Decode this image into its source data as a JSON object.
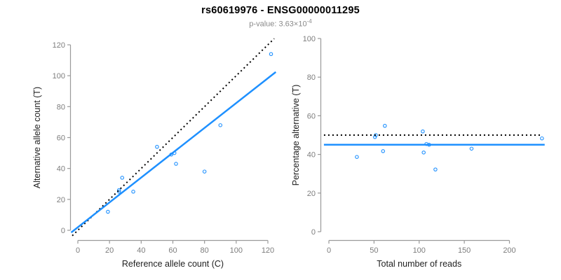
{
  "header": {
    "title": "rs60619976 - ENSG00000011295",
    "p_value_prefix": "p-value: 3.63×10",
    "p_value_exponent": "-4"
  },
  "colors": {
    "points": "#1E90FF",
    "fit_line": "#1E90FF",
    "reference_line": "#000000",
    "axis_line": "#9a9a9a",
    "tick_label": "#7d7d7d",
    "axis_title": "#1f1f1f",
    "subtitle": "#8a8a8a"
  },
  "chart_data": [
    {
      "type": "scatter",
      "title": "",
      "xlabel": "Reference allele count (C)",
      "ylabel": "Alternative allele count (T)",
      "xticks": [
        0,
        20,
        40,
        60,
        80,
        100,
        120
      ],
      "yticks": [
        0,
        20,
        40,
        60,
        80,
        100,
        120
      ],
      "xlim": [
        -4,
        125
      ],
      "ylim": [
        -6.5,
        124.5
      ],
      "grid": false,
      "legend": "none",
      "marker": "open-circle",
      "points": [
        [
          19,
          12
        ],
        [
          26,
          25
        ],
        [
          26,
          26
        ],
        [
          28,
          34
        ],
        [
          35,
          25
        ],
        [
          50,
          54
        ],
        [
          59,
          49
        ],
        [
          61,
          50
        ],
        [
          62,
          43
        ],
        [
          80,
          38
        ],
        [
          90,
          68
        ],
        [
          122,
          114
        ]
      ],
      "lines": [
        {
          "name": "identity-dotted-line",
          "role": "y-equals-x",
          "style": "dotted",
          "color": "#000000",
          "width": 2,
          "x1": -3.5,
          "y1": -3.5,
          "x2": 124,
          "y2": 124
        },
        {
          "name": "regression-fit-line",
          "role": "fit",
          "style": "solid",
          "color": "#1E90FF",
          "width": 2.5,
          "x1": -4.2,
          "y1": -1.4,
          "x2": 125,
          "y2": 102.4
        }
      ]
    },
    {
      "type": "scatter",
      "title": "",
      "xlabel": "Total number of reads",
      "ylabel": "Percentage alternative (T)",
      "xticks": [
        0,
        50,
        100,
        150,
        200
      ],
      "yticks": [
        0,
        20,
        40,
        60,
        80,
        100
      ],
      "xlim": [
        -5.5,
        239.5
      ],
      "ylim": [
        -4.5,
        104.5
      ],
      "grid": false,
      "legend": "none",
      "marker": "open-circle",
      "points": [
        [
          31,
          38.7
        ],
        [
          51,
          49.0
        ],
        [
          52,
          50.0
        ],
        [
          62,
          54.8
        ],
        [
          60,
          41.7
        ],
        [
          104,
          51.9
        ],
        [
          108,
          45.4
        ],
        [
          111,
          45.0
        ],
        [
          105,
          41.0
        ],
        [
          118,
          32.2
        ],
        [
          158,
          43.0
        ],
        [
          236,
          48.3
        ]
      ],
      "lines": [
        {
          "name": "fifty-percent-dotted-line",
          "role": "50-percent-reference",
          "style": "dotted",
          "color": "#000000",
          "width": 2,
          "x1": -5.5,
          "y1": 50,
          "x2": 236,
          "y2": 50
        },
        {
          "name": "mean-percentage-line",
          "role": "fitted-proportion",
          "style": "solid",
          "color": "#1E90FF",
          "width": 2.5,
          "x1": -5.5,
          "y1": 45,
          "x2": 239,
          "y2": 45
        }
      ]
    }
  ]
}
